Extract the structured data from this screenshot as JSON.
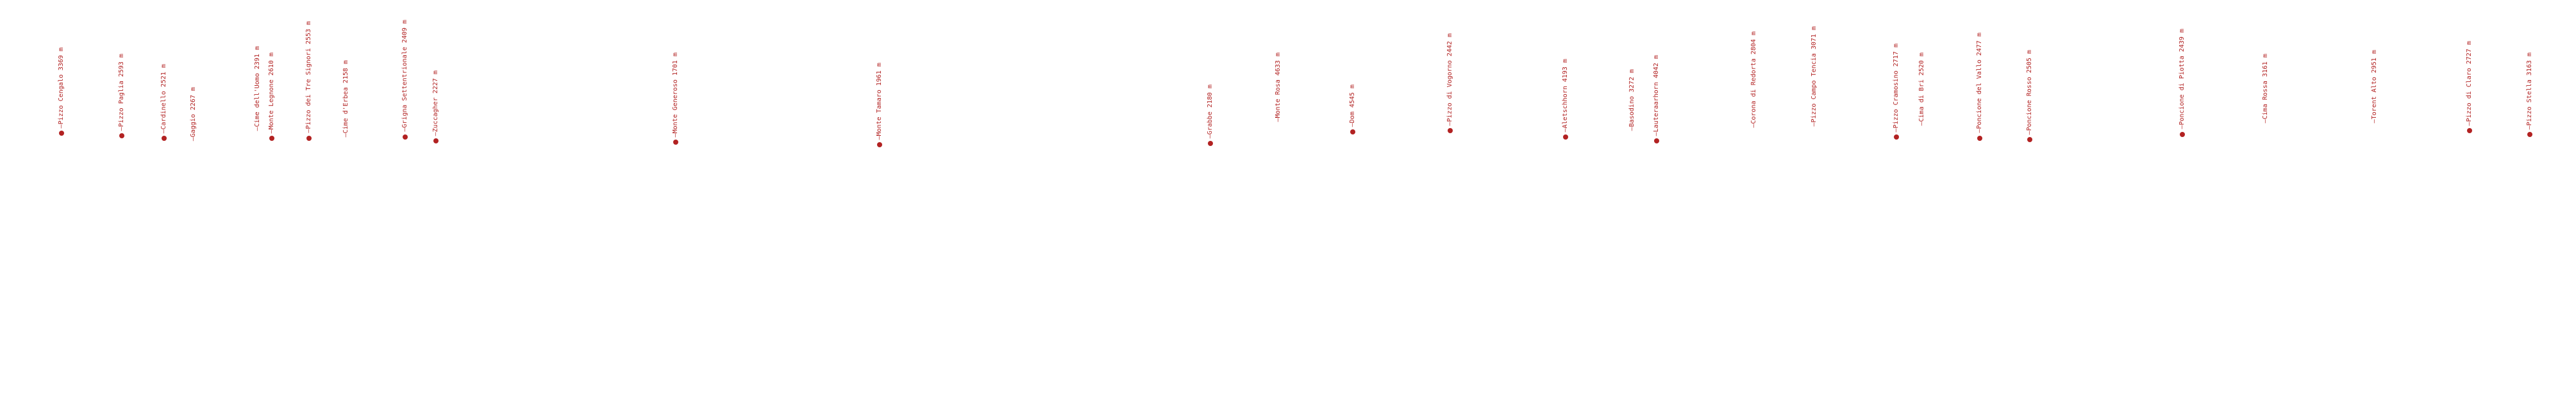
{
  "accent_color": "#b22222",
  "peaks": [
    {
      "name": "Pizzo Cengalo",
      "elevation_m": 3369,
      "unit": "m",
      "marked": true
    },
    {
      "name": "Pizzo Paglia",
      "elevation_m": 2593,
      "unit": "m",
      "marked": true
    },
    {
      "name": "Cardinello",
      "elevation_m": 2521,
      "unit": "m",
      "marked": true
    },
    {
      "name": "Gaggio",
      "elevation_m": 2267,
      "unit": "m",
      "marked": false
    },
    {
      "name": "Cime dell'Uomo",
      "elevation_m": 2391,
      "unit": "m",
      "marked": false
    },
    {
      "name": "Monte Legnone",
      "elevation_m": 2610,
      "unit": "m",
      "marked": true
    },
    {
      "name": "Pizzo dei Tre Signori",
      "elevation_m": 2553,
      "unit": "m",
      "marked": true
    },
    {
      "name": "Cime d'Erbea",
      "elevation_m": 2158,
      "unit": "m",
      "marked": false
    },
    {
      "name": "Grigna Settentrionale",
      "elevation_m": 2409,
      "unit": "m",
      "marked": true
    },
    {
      "name": "Zuccagher",
      "elevation_m": 2227,
      "unit": "m",
      "marked": true
    },
    {
      "name": "Monte Generoso",
      "elevation_m": 1701,
      "unit": "m",
      "marked": true
    },
    {
      "name": "Monte Tamaro",
      "elevation_m": 1961,
      "unit": "m",
      "marked": true
    },
    {
      "name": "Grabbe",
      "elevation_m": 2180,
      "unit": "m",
      "marked": true
    },
    {
      "name": "Monte Rosa",
      "elevation_m": 4633,
      "unit": "m",
      "marked": false
    },
    {
      "name": "Dom",
      "elevation_m": 4545,
      "unit": "m",
      "marked": true
    },
    {
      "name": "Pizzo di Vogorno",
      "elevation_m": 2442,
      "unit": "m",
      "marked": true
    },
    {
      "name": "Aletschhorn",
      "elevation_m": 4193,
      "unit": "m",
      "marked": true
    },
    {
      "name": "Basodino",
      "elevation_m": 3272,
      "unit": "m",
      "marked": false
    },
    {
      "name": "Lauteraarhorn",
      "elevation_m": 4042,
      "unit": "m",
      "marked": true
    },
    {
      "name": "Corona di Redorta",
      "elevation_m": 2804,
      "unit": "m",
      "marked": false
    },
    {
      "name": "Pizzo Campo Tencia",
      "elevation_m": 3071,
      "unit": "m",
      "marked": false
    },
    {
      "name": "Pizzo Cramosino",
      "elevation_m": 2717,
      "unit": "m",
      "marked": true
    },
    {
      "name": "Cima di Bri",
      "elevation_m": 2520,
      "unit": "m",
      "marked": false
    },
    {
      "name": "Poncione del Vallo",
      "elevation_m": 2477,
      "unit": "m",
      "marked": true
    },
    {
      "name": "Poncione Rosso",
      "elevation_m": 2505,
      "unit": "m",
      "marked": true
    },
    {
      "name": "Poncione di Piotta",
      "elevation_m": 2439,
      "unit": "m",
      "marked": true
    },
    {
      "name": "Cima Rossa",
      "elevation_m": 3161,
      "unit": "m",
      "marked": false
    },
    {
      "name": "Torent Alto",
      "elevation_m": 2951,
      "unit": "m",
      "marked": false
    },
    {
      "name": "Pizzo di Claro",
      "elevation_m": 2727,
      "unit": "m",
      "marked": true
    },
    {
      "name": "Pizzo Stella",
      "elevation_m": 3163,
      "unit": "m",
      "marked": true
    }
  ]
}
